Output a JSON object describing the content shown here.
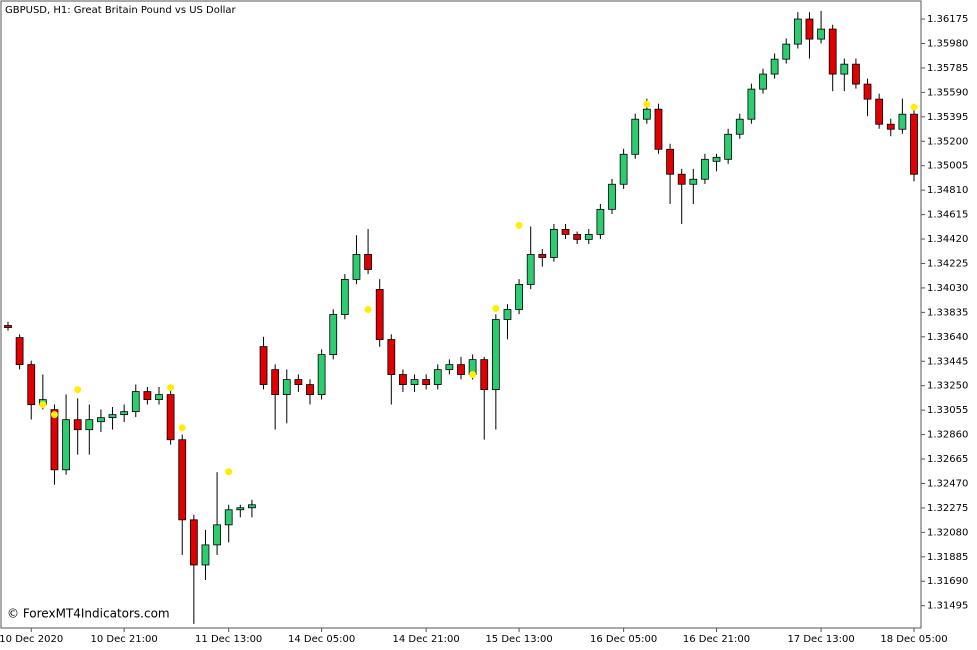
{
  "chart_data": {
    "type": "candlestick",
    "title": "GBPUSD, H1:  Great Britain Pound vs US Dollar",
    "watermark": "© ForexMT4Indicators.com",
    "up_color": "#2ecc71",
    "down_color": "#e00000",
    "signal_color": "#ffee00",
    "categories": [
      null,
      null,
      "10 Dec 2020",
      null,
      null,
      null,
      null,
      null,
      null,
      null,
      "10 Dec 21:00",
      null,
      null,
      null,
      null,
      null,
      null,
      null,
      null,
      "11 Dec 13:00",
      null,
      null,
      null,
      null,
      null,
      null,
      null,
      "14 Dec 05:00",
      null,
      null,
      null,
      null,
      null,
      null,
      null,
      null,
      "14 Dec 21:00",
      null,
      null,
      null,
      null,
      null,
      null,
      null,
      "15 Dec 13:00",
      null,
      null,
      null,
      null,
      null,
      null,
      null,
      null,
      "16 Dec 05:00",
      null,
      null,
      null,
      null,
      null,
      null,
      null,
      "16 Dec 21:00",
      null,
      null,
      null,
      null,
      null,
      null,
      null,
      null,
      "17 Dec 13:00",
      null,
      null,
      null,
      null,
      null,
      null,
      null,
      "18 Dec 05:00"
    ],
    "open": [
      1.3373,
      1.33634,
      1.33418,
      1.33099,
      1.33059,
      1.32579,
      1.32979,
      1.32899,
      1.32963,
      1.32995,
      1.33019,
      1.33043,
      1.33203,
      1.33139,
      1.33179,
      1.32819,
      1.3218,
      1.3182,
      1.3198,
      1.3214,
      1.3226,
      1.32276,
      1.33562,
      1.33378,
      1.33179,
      1.33299,
      1.33259,
      1.33179,
      1.33498,
      1.33818,
      1.34098,
      1.34297,
      1.34018,
      1.33618,
      1.33339,
      1.33259,
      1.33299,
      1.33259,
      1.33378,
      1.33418,
      1.33339,
      1.33458,
      1.33219,
      1.33778,
      1.33858,
      1.34058,
      1.34297,
      1.34273,
      1.34497,
      1.34457,
      1.34417,
      1.34457,
      1.34657,
      1.34857,
      1.35096,
      1.35376,
      1.35456,
      1.35136,
      1.34937,
      1.34857,
      1.34897,
      1.3504,
      1.35056,
      1.35256,
      1.35376,
      1.35616,
      1.35736,
      1.35855,
      1.35975,
      1.36175,
      1.36015,
      1.36095,
      1.35736,
      1.35815,
      1.35656,
      1.35536,
      1.35336,
      1.35296,
      1.35416
    ],
    "high": [
      1.3376,
      1.3366,
      1.3345,
      1.3334,
      1.331,
      1.3318,
      1.3315,
      1.331,
      1.3306,
      1.3308,
      1.331,
      1.3326,
      1.3324,
      1.3324,
      1.3324,
      1.3286,
      1.3222,
      1.321,
      1.3256,
      1.323,
      1.323,
      1.3234,
      1.3364,
      1.3342,
      1.3338,
      1.3334,
      1.333,
      1.3354,
      1.3386,
      1.3414,
      1.3445,
      1.345,
      1.341,
      1.3366,
      1.3338,
      1.3334,
      1.3334,
      1.3342,
      1.3346,
      1.3348,
      1.335,
      1.3348,
      1.3382,
      1.339,
      1.341,
      1.3452,
      1.3434,
      1.3454,
      1.3454,
      1.3448,
      1.345,
      1.347,
      1.349,
      1.3514,
      1.3542,
      1.3554,
      1.355,
      1.3518,
      1.3498,
      1.3498,
      1.351,
      1.351,
      1.353,
      1.3542,
      1.3566,
      1.3578,
      1.359,
      1.3602,
      1.3623,
      1.3623,
      1.3624,
      1.3613,
      1.3586,
      1.3586,
      1.357,
      1.3558,
      1.3538,
      1.3554,
      1.3546
    ],
    "low": [
      1.3369,
      1.3338,
      1.3298,
      1.3306,
      1.3246,
      1.3254,
      1.327,
      1.327,
      1.3288,
      1.329,
      1.3296,
      1.33,
      1.331,
      1.331,
      1.3278,
      1.319,
      1.3135,
      1.317,
      1.319,
      1.32,
      1.322,
      1.322,
      1.3322,
      1.329,
      1.3295,
      1.332,
      1.331,
      1.3314,
      1.3346,
      1.3378,
      1.3406,
      1.3414,
      1.3356,
      1.331,
      1.332,
      1.332,
      1.3322,
      1.3322,
      1.3334,
      1.333,
      1.333,
      1.3282,
      1.329,
      1.3362,
      1.3382,
      1.3402,
      1.342,
      1.3424,
      1.3442,
      1.3438,
      1.3438,
      1.3442,
      1.3462,
      1.3482,
      1.3506,
      1.3534,
      1.351,
      1.347,
      1.3454,
      1.347,
      1.3486,
      1.3496,
      1.3502,
      1.3522,
      1.3534,
      1.3558,
      1.357,
      1.3582,
      1.3594,
      1.3586,
      1.3598,
      1.356,
      1.356,
      1.3562,
      1.354,
      1.353,
      1.3524,
      1.3526,
      1.3488
    ],
    "close": [
      1.33714,
      1.33418,
      1.33099,
      1.33139,
      1.32579,
      1.32979,
      1.32899,
      1.32979,
      1.32995,
      1.33019,
      1.33043,
      1.33203,
      1.33139,
      1.33179,
      1.32819,
      1.3218,
      1.3182,
      1.3198,
      1.3214,
      1.3226,
      1.32276,
      1.323,
      1.33259,
      1.33179,
      1.33299,
      1.33259,
      1.33179,
      1.33498,
      1.33818,
      1.34098,
      1.34297,
      1.34177,
      1.33618,
      1.33339,
      1.33259,
      1.33299,
      1.33259,
      1.33378,
      1.33418,
      1.33339,
      1.33458,
      1.33219,
      1.33778,
      1.33858,
      1.34058,
      1.34297,
      1.34273,
      1.34497,
      1.34457,
      1.34417,
      1.34457,
      1.34657,
      1.34857,
      1.35096,
      1.35376,
      1.35456,
      1.35136,
      1.34937,
      1.34857,
      1.34897,
      1.35056,
      1.35072,
      1.35256,
      1.35376,
      1.35616,
      1.35736,
      1.35855,
      1.35975,
      1.36175,
      1.36015,
      1.36095,
      1.35736,
      1.35815,
      1.35656,
      1.35536,
      1.35336,
      1.35296,
      1.35416,
      1.34937
    ],
    "signals": [
      null,
      null,
      null,
      1.33099,
      1.33019,
      null,
      1.33219,
      null,
      null,
      null,
      null,
      null,
      null,
      null,
      1.33235,
      1.32915,
      null,
      null,
      null,
      1.32564,
      null,
      null,
      null,
      null,
      null,
      null,
      null,
      null,
      null,
      null,
      null,
      1.33858,
      null,
      null,
      null,
      null,
      null,
      null,
      null,
      null,
      1.33339,
      null,
      1.33866,
      null,
      1.34529,
      null,
      null,
      null,
      null,
      null,
      null,
      null,
      null,
      null,
      null,
      1.35496,
      null,
      null,
      null,
      null,
      null,
      null,
      null,
      null,
      null,
      null,
      null,
      null,
      null,
      null,
      null,
      null,
      null,
      null,
      null,
      null,
      null,
      null,
      1.35472
    ],
    "ylim": [
      1.31317,
      1.36319
    ],
    "yticks": [
      {
        "value": 1.36175,
        "label": "1.36175"
      },
      {
        "value": 1.3598,
        "label": "1.35980"
      },
      {
        "value": 1.35785,
        "label": "1.35785"
      },
      {
        "value": 1.3559,
        "label": "1.35590"
      },
      {
        "value": 1.35395,
        "label": "1.35395"
      },
      {
        "value": 1.352,
        "label": "1.35200"
      },
      {
        "value": 1.35005,
        "label": "1.35005"
      },
      {
        "value": 1.3481,
        "label": "1.34810"
      },
      {
        "value": 1.34615,
        "label": "1.34615"
      },
      {
        "value": 1.3442,
        "label": "1.34420"
      },
      {
        "value": 1.34225,
        "label": "1.34225"
      },
      {
        "value": 1.3403,
        "label": "1.34030"
      },
      {
        "value": 1.33835,
        "label": "1.33835"
      },
      {
        "value": 1.3364,
        "label": "1.33640"
      },
      {
        "value": 1.33445,
        "label": "1.33445"
      },
      {
        "value": 1.3325,
        "label": "1.33250"
      },
      {
        "value": 1.33055,
        "label": "1.33055"
      },
      {
        "value": 1.3286,
        "label": "1.32860"
      },
      {
        "value": 1.32665,
        "label": "1.32665"
      },
      {
        "value": 1.3247,
        "label": "1.32470"
      },
      {
        "value": 1.32275,
        "label": "1.32275"
      },
      {
        "value": 1.3208,
        "label": "1.32080"
      },
      {
        "value": 1.31885,
        "label": "1.31885"
      },
      {
        "value": 1.3169,
        "label": "1.31690"
      },
      {
        "value": 1.31495,
        "label": "1.31495"
      }
    ]
  }
}
